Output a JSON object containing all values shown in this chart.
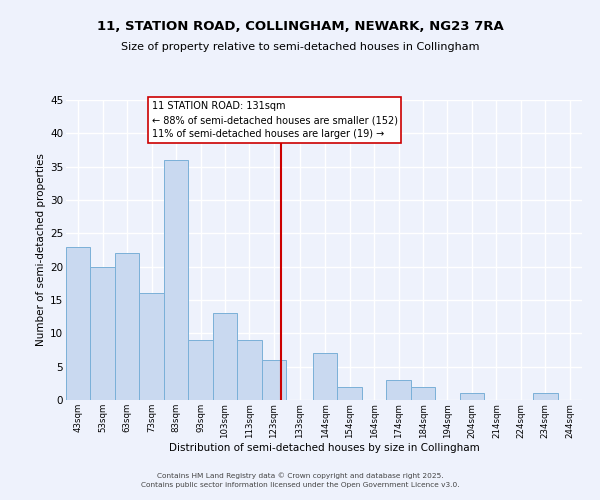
{
  "title": "11, STATION ROAD, COLLINGHAM, NEWARK, NG23 7RA",
  "subtitle": "Size of property relative to semi-detached houses in Collingham",
  "xlabel": "Distribution of semi-detached houses by size in Collingham",
  "ylabel": "Number of semi-detached properties",
  "bin_labels": [
    "43sqm",
    "53sqm",
    "63sqm",
    "73sqm",
    "83sqm",
    "93sqm",
    "103sqm",
    "113sqm",
    "123sqm",
    "133sqm",
    "144sqm",
    "154sqm",
    "164sqm",
    "174sqm",
    "184sqm",
    "194sqm",
    "204sqm",
    "214sqm",
    "224sqm",
    "234sqm",
    "244sqm"
  ],
  "bin_edges": [
    43,
    53,
    63,
    73,
    83,
    93,
    103,
    113,
    123,
    133,
    144,
    154,
    164,
    174,
    184,
    194,
    204,
    214,
    224,
    234,
    244,
    254
  ],
  "counts": [
    23,
    20,
    22,
    16,
    36,
    9,
    13,
    9,
    6,
    0,
    7,
    2,
    0,
    3,
    2,
    0,
    1,
    0,
    0,
    1,
    0
  ],
  "bar_color": "#c9d9f0",
  "bar_edge_color": "#7ab0d8",
  "vline_x": 131,
  "vline_color": "#cc0000",
  "annotation_title": "11 STATION ROAD: 131sqm",
  "annotation_line1": "← 88% of semi-detached houses are smaller (152)",
  "annotation_line2": "11% of semi-detached houses are larger (19) →",
  "annotation_box_color": "#ffffff",
  "annotation_box_edge": "#cc0000",
  "ylim": [
    0,
    45
  ],
  "yticks": [
    0,
    5,
    10,
    15,
    20,
    25,
    30,
    35,
    40,
    45
  ],
  "footer1": "Contains HM Land Registry data © Crown copyright and database right 2025.",
  "footer2": "Contains public sector information licensed under the Open Government Licence v3.0.",
  "bg_color": "#eef2fc",
  "grid_color": "#ffffff"
}
